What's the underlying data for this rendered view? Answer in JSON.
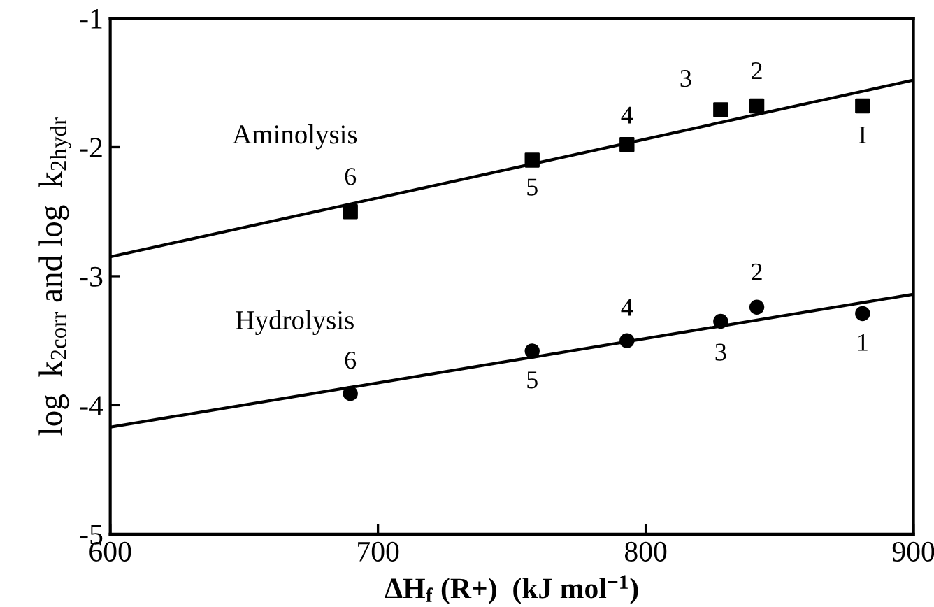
{
  "chart_data": {
    "type": "scatter",
    "xlabel": "ΔH$_{f}$ (R+)  (kJ mol$^{−1}$)",
    "ylabel": "log  k$_{2corr}$ and log  k$_{2hydr}$",
    "xlim": [
      600,
      900
    ],
    "ylim": [
      -5,
      -1
    ],
    "xticks": [
      600,
      700,
      800,
      900
    ],
    "yticks": [
      -5,
      -4,
      -3,
      -2,
      -1
    ],
    "grid": false,
    "legend": false,
    "series": [
      {
        "marker": "square",
        "color": "#000000",
        "x": [
          881,
          841.5,
          828,
          793,
          757.6,
          689.7
        ],
        "values": [
          -1.68,
          -1.68,
          -1.71,
          -1.98,
          -2.1,
          -2.5
        ]
      },
      {
        "marker": "circle",
        "color": "#000000",
        "x": [
          881,
          841.5,
          828,
          793,
          757.6,
          689.7
        ],
        "values": [
          -3.29,
          -3.24,
          -3.35,
          -3.5,
          -3.58,
          -3.91
        ]
      },
      {
        "type": "line",
        "marker": "none",
        "line_style": "solid",
        "color": "#000000",
        "x": [
          600,
          900
        ],
        "values": [
          -2.85,
          -1.48
        ]
      },
      {
        "type": "line",
        "marker": "none",
        "line_style": "solid",
        "color": "#000000",
        "x": [
          600,
          900
        ],
        "values": [
          -4.17,
          -3.14
        ]
      }
    ],
    "annotations": [
      "Aminolysis",
      "Hydrolysis",
      {
        "text": "I",
        "x": 881,
        "y": -1.68
      },
      {
        "text": "2",
        "x": 841.5,
        "y": -1.68
      },
      {
        "text": "3",
        "x": 828,
        "y": -1.71
      },
      {
        "text": "4",
        "x": 793,
        "y": -1.98
      },
      {
        "text": "5",
        "x": 757.6,
        "y": -2.1
      },
      {
        "text": "6",
        "x": 689.7,
        "y": -2.5
      },
      {
        "text": "1",
        "x": 881,
        "y": -3.29
      },
      {
        "text": "2",
        "x": 841.5,
        "y": -3.24
      },
      {
        "text": "3",
        "x": 828,
        "y": -3.35
      },
      {
        "text": "4",
        "x": 793,
        "y": -3.5
      },
      {
        "text": "5",
        "x": 757.6,
        "y": -3.58
      },
      {
        "text": "6",
        "x": 689.7,
        "y": -3.91
      }
    ]
  }
}
